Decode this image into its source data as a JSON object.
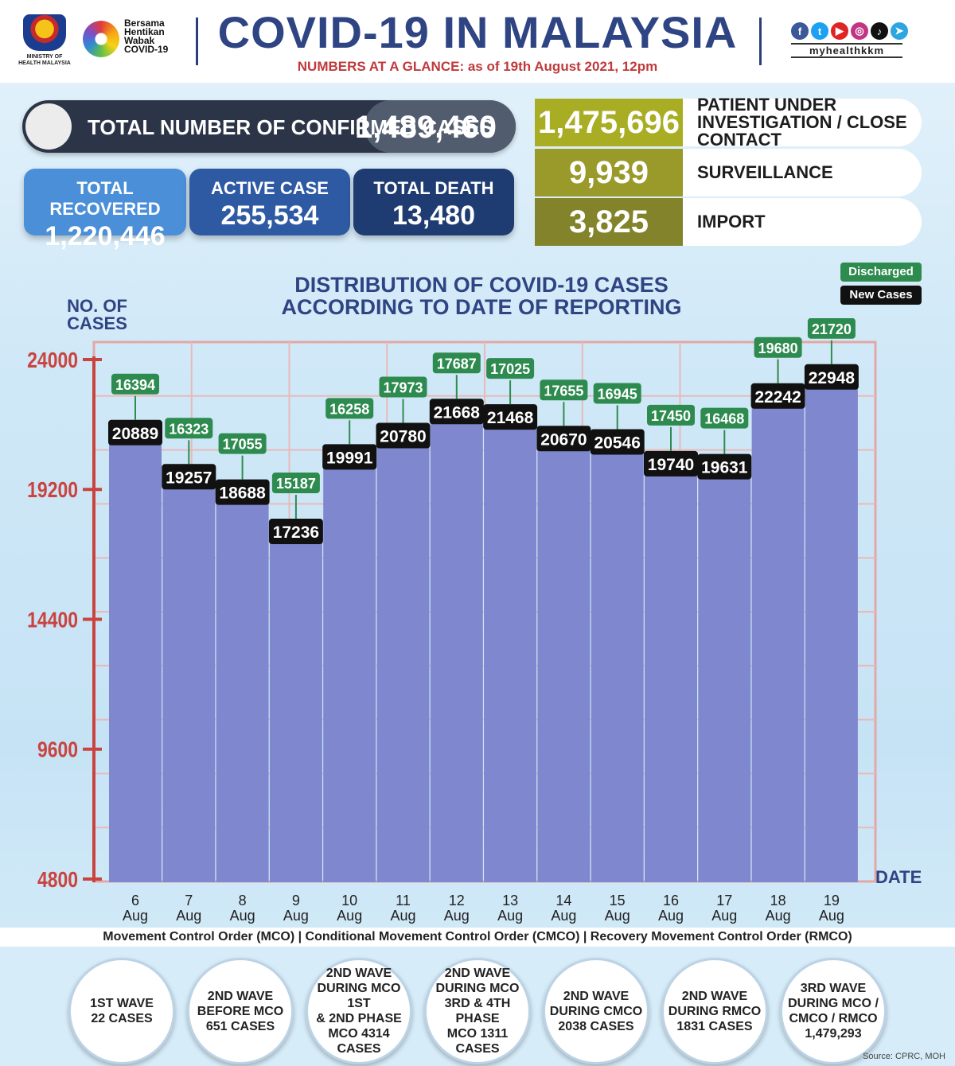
{
  "header": {
    "moh_text": "MINISTRY OF HEALTH MALAYSIA",
    "bersama_lines": [
      "Bersama",
      "Hentikan",
      "Wabak",
      "COVID-19"
    ],
    "title": "COVID-19 IN MALAYSIA",
    "subtitle": "NUMBERS AT A GLANCE: as of 19th August 2021, 12pm",
    "social_icons": [
      "facebook-icon",
      "twitter-icon",
      "youtube-icon",
      "instagram-icon",
      "tiktok-icon",
      "telegram-icon"
    ],
    "handle": "myhealthkkm"
  },
  "summary": {
    "total_label": "TOTAL NUMBER OF CONFIRMED CASES",
    "total_value": "1,489,460",
    "recovered_label": "TOTAL RECOVERED",
    "recovered_value": "1,220,446",
    "active_label": "ACTIVE CASE",
    "active_value": "255,534",
    "death_label": "TOTAL DEATH",
    "death_value": "13,480"
  },
  "side": [
    {
      "value": "1,475,696",
      "label": "PATIENT UNDER INVESTIGATION / CLOSE CONTACT",
      "color": "#a9ad23"
    },
    {
      "value": "9,939",
      "label": "SURVEILLANCE",
      "color": "#999a2a"
    },
    {
      "value": "3,825",
      "label": "IMPORT",
      "color": "#82832a"
    }
  ],
  "colors": {
    "recovered": "#4a8fd8",
    "active": "#2e5aa4",
    "death": "#1f3c72",
    "bar": "#7f87ce",
    "discharged": "#2e8b4f",
    "new_cases": "#111111",
    "axis": "#c9433f"
  },
  "chart_data": {
    "type": "bar",
    "title": "DISTRIBUTION OF COVID-19 CASES ACCORDING TO DATE OF REPORTING",
    "ylabel": "NO. OF CASES",
    "xlabel": "DATE",
    "ylim": [
      4800,
      24000
    ],
    "yticks": [
      24000,
      19200,
      14400,
      9600,
      4800
    ],
    "legend": [
      "Discharged",
      "New Cases"
    ],
    "categories": [
      {
        "day": "6",
        "month": "Aug"
      },
      {
        "day": "7",
        "month": "Aug"
      },
      {
        "day": "8",
        "month": "Aug"
      },
      {
        "day": "9",
        "month": "Aug"
      },
      {
        "day": "10",
        "month": "Aug"
      },
      {
        "day": "11",
        "month": "Aug"
      },
      {
        "day": "12",
        "month": "Aug"
      },
      {
        "day": "13",
        "month": "Aug"
      },
      {
        "day": "14",
        "month": "Aug"
      },
      {
        "day": "15",
        "month": "Aug"
      },
      {
        "day": "16",
        "month": "Aug"
      },
      {
        "day": "17",
        "month": "Aug"
      },
      {
        "day": "18",
        "month": "Aug"
      },
      {
        "day": "19",
        "month": "Aug"
      }
    ],
    "series": [
      {
        "name": "New Cases",
        "values": [
          20889,
          19257,
          18688,
          17236,
          19991,
          20780,
          21668,
          21468,
          20670,
          20546,
          19740,
          19631,
          22242,
          22948
        ]
      },
      {
        "name": "Discharged",
        "values": [
          16394,
          16323,
          17055,
          15187,
          16258,
          17973,
          17687,
          17025,
          17655,
          16945,
          17450,
          16468,
          19680,
          21720
        ]
      }
    ]
  },
  "mco_text": "Movement Control Order (MCO) | Conditional Movement Control Order (CMCO) | Recovery Movement Control Order (RMCO)",
  "waves": [
    "1ST WAVE\n22 CASES",
    "2ND WAVE\nBEFORE MCO\n651 CASES",
    "2ND WAVE\nDURING MCO 1ST\n& 2ND PHASE\nMCO 4314\nCASES",
    "2ND WAVE\nDURING MCO\n3RD & 4TH PHASE\nMCO 1311\nCASES",
    "2ND WAVE\nDURING CMCO\n2038 CASES",
    "2ND WAVE\nDURING RMCO\n1831 CASES",
    "3RD WAVE\nDURING MCO /\nCMCO / RMCO\n1,479,293"
  ],
  "source": "Source: CPRC, MOH"
}
